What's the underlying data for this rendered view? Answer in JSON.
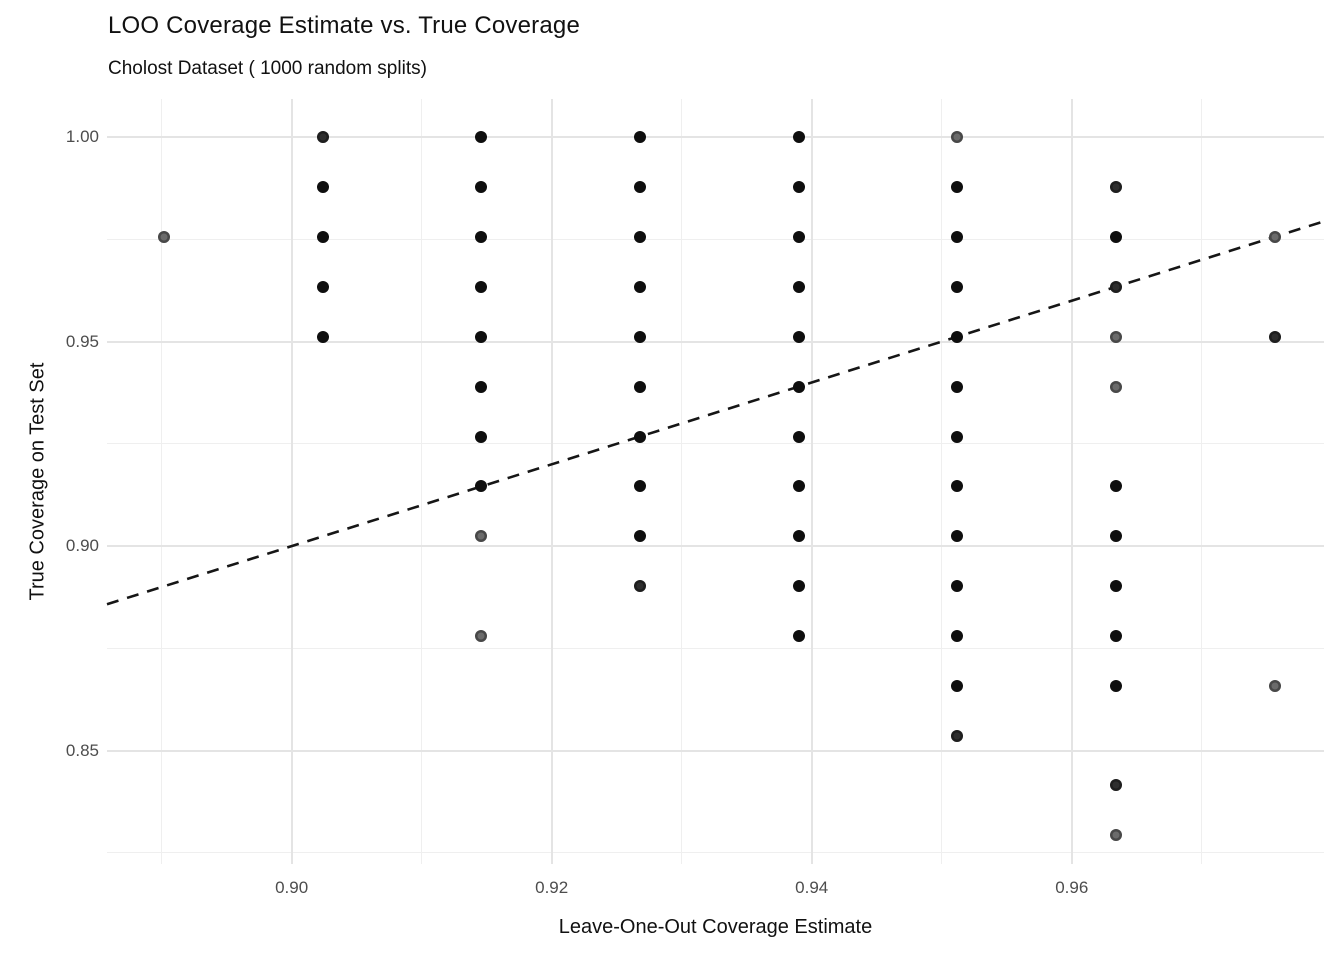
{
  "header": {
    "title": "LOO Coverage Estimate vs. True Coverage",
    "subtitle": "Cholost Dataset ( 1000 random splits)"
  },
  "chart_data": {
    "type": "scatter",
    "title": "LOO Coverage Estimate vs. True Coverage",
    "subtitle": "Cholost Dataset ( 1000 random splits)",
    "xlabel": "Leave-One-Out Coverage Estimate",
    "ylabel": "True Coverage on Test Set",
    "xlim": [
      0.8858,
      0.9794
    ],
    "ylim": [
      0.8223,
      1.0093
    ],
    "grid": true,
    "background": "#ffffff",
    "x_major_ticks": [
      {
        "value": 0.9,
        "label": "0.90"
      },
      {
        "value": 0.92,
        "label": "0.92"
      },
      {
        "value": 0.94,
        "label": "0.94"
      },
      {
        "value": 0.96,
        "label": "0.96"
      }
    ],
    "x_minor_ticks": [
      0.89,
      0.91,
      0.93,
      0.95,
      0.97
    ],
    "y_major_ticks": [
      {
        "value": 1.0,
        "label": "1.00"
      },
      {
        "value": 0.95,
        "label": "0.95"
      },
      {
        "value": 0.9,
        "label": "0.90"
      },
      {
        "value": 0.85,
        "label": "0.85"
      }
    ],
    "y_minor_ticks": [
      0.975,
      0.925,
      0.875,
      0.825
    ],
    "reference_line": {
      "equation": "y = x",
      "slope": 1,
      "intercept": 0,
      "style": "dashed",
      "color": "#161616"
    },
    "shade_colors": {
      "black": "#0e0e0e",
      "dark": "#2e2e2e",
      "gray": "#6b6b6b"
    },
    "points": [
      {
        "x": 0.8902,
        "y": 0.9756,
        "shade": "gray"
      },
      {
        "x": 0.9024,
        "y": 1.0,
        "shade": "dark"
      },
      {
        "x": 0.9024,
        "y": 0.9878,
        "shade": "black"
      },
      {
        "x": 0.9024,
        "y": 0.9756,
        "shade": "black"
      },
      {
        "x": 0.9024,
        "y": 0.9634,
        "shade": "black"
      },
      {
        "x": 0.9024,
        "y": 0.9512,
        "shade": "black"
      },
      {
        "x": 0.9146,
        "y": 1.0,
        "shade": "black"
      },
      {
        "x": 0.9146,
        "y": 0.9878,
        "shade": "black"
      },
      {
        "x": 0.9146,
        "y": 0.9756,
        "shade": "black"
      },
      {
        "x": 0.9146,
        "y": 0.9634,
        "shade": "black"
      },
      {
        "x": 0.9146,
        "y": 0.9512,
        "shade": "black"
      },
      {
        "x": 0.9146,
        "y": 0.939,
        "shade": "black"
      },
      {
        "x": 0.9146,
        "y": 0.9268,
        "shade": "black"
      },
      {
        "x": 0.9146,
        "y": 0.9146,
        "shade": "black"
      },
      {
        "x": 0.9146,
        "y": 0.9024,
        "shade": "gray"
      },
      {
        "x": 0.9146,
        "y": 0.878,
        "shade": "gray"
      },
      {
        "x": 0.9268,
        "y": 1.0,
        "shade": "black"
      },
      {
        "x": 0.9268,
        "y": 0.9878,
        "shade": "black"
      },
      {
        "x": 0.9268,
        "y": 0.9756,
        "shade": "black"
      },
      {
        "x": 0.9268,
        "y": 0.9634,
        "shade": "black"
      },
      {
        "x": 0.9268,
        "y": 0.9512,
        "shade": "black"
      },
      {
        "x": 0.9268,
        "y": 0.939,
        "shade": "black"
      },
      {
        "x": 0.9268,
        "y": 0.9268,
        "shade": "black"
      },
      {
        "x": 0.9268,
        "y": 0.9146,
        "shade": "black"
      },
      {
        "x": 0.9268,
        "y": 0.9024,
        "shade": "black"
      },
      {
        "x": 0.9268,
        "y": 0.8902,
        "shade": "dark"
      },
      {
        "x": 0.939,
        "y": 1.0,
        "shade": "black"
      },
      {
        "x": 0.939,
        "y": 0.9878,
        "shade": "black"
      },
      {
        "x": 0.939,
        "y": 0.9756,
        "shade": "black"
      },
      {
        "x": 0.939,
        "y": 0.9634,
        "shade": "black"
      },
      {
        "x": 0.939,
        "y": 0.9512,
        "shade": "black"
      },
      {
        "x": 0.939,
        "y": 0.939,
        "shade": "black"
      },
      {
        "x": 0.939,
        "y": 0.9268,
        "shade": "black"
      },
      {
        "x": 0.939,
        "y": 0.9146,
        "shade": "black"
      },
      {
        "x": 0.939,
        "y": 0.9024,
        "shade": "black"
      },
      {
        "x": 0.939,
        "y": 0.8902,
        "shade": "black"
      },
      {
        "x": 0.939,
        "y": 0.878,
        "shade": "black"
      },
      {
        "x": 0.9512,
        "y": 1.0,
        "shade": "gray"
      },
      {
        "x": 0.9512,
        "y": 0.9878,
        "shade": "black"
      },
      {
        "x": 0.9512,
        "y": 0.9756,
        "shade": "black"
      },
      {
        "x": 0.9512,
        "y": 0.9634,
        "shade": "black"
      },
      {
        "x": 0.9512,
        "y": 0.9512,
        "shade": "black"
      },
      {
        "x": 0.9512,
        "y": 0.939,
        "shade": "black"
      },
      {
        "x": 0.9512,
        "y": 0.9268,
        "shade": "black"
      },
      {
        "x": 0.9512,
        "y": 0.9146,
        "shade": "black"
      },
      {
        "x": 0.9512,
        "y": 0.9024,
        "shade": "black"
      },
      {
        "x": 0.9512,
        "y": 0.8902,
        "shade": "black"
      },
      {
        "x": 0.9512,
        "y": 0.878,
        "shade": "black"
      },
      {
        "x": 0.9512,
        "y": 0.8659,
        "shade": "black"
      },
      {
        "x": 0.9512,
        "y": 0.8537,
        "shade": "dark"
      },
      {
        "x": 0.9634,
        "y": 0.9878,
        "shade": "dark"
      },
      {
        "x": 0.9634,
        "y": 0.9756,
        "shade": "black"
      },
      {
        "x": 0.9634,
        "y": 0.9634,
        "shade": "dark"
      },
      {
        "x": 0.9634,
        "y": 0.9512,
        "shade": "gray"
      },
      {
        "x": 0.9634,
        "y": 0.939,
        "shade": "gray"
      },
      {
        "x": 0.9634,
        "y": 0.9146,
        "shade": "black"
      },
      {
        "x": 0.9634,
        "y": 0.9024,
        "shade": "black"
      },
      {
        "x": 0.9634,
        "y": 0.8902,
        "shade": "black"
      },
      {
        "x": 0.9634,
        "y": 0.878,
        "shade": "black"
      },
      {
        "x": 0.9634,
        "y": 0.8659,
        "shade": "black"
      },
      {
        "x": 0.9634,
        "y": 0.8415,
        "shade": "dark"
      },
      {
        "x": 0.9634,
        "y": 0.8293,
        "shade": "gray"
      },
      {
        "x": 0.9756,
        "y": 0.9756,
        "shade": "gray"
      },
      {
        "x": 0.9756,
        "y": 0.9512,
        "shade": "dark"
      },
      {
        "x": 0.9756,
        "y": 0.8659,
        "shade": "gray"
      }
    ]
  }
}
